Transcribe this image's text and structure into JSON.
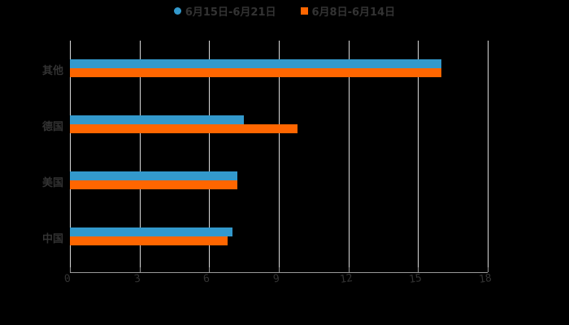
{
  "chart_data": {
    "type": "bar",
    "orientation": "horizontal",
    "title": "",
    "xlabel": "",
    "ylabel": "",
    "categories": [
      "其他",
      "德国",
      "美国",
      "中国"
    ],
    "series": [
      {
        "name": "6月15日-6月21日",
        "color": "#3399cc",
        "marker": "circle",
        "values": [
          16,
          7.5,
          7.2,
          7.0
        ]
      },
      {
        "name": "6月8日-6月14日",
        "color": "#ff6600",
        "marker": "square",
        "values": [
          16,
          9.8,
          7.2,
          6.8
        ]
      }
    ],
    "xlim": [
      0,
      18
    ],
    "xticks": [
      "0",
      "3",
      "6",
      "9",
      "12",
      "15",
      "18"
    ],
    "grid": true,
    "legend_position": "top"
  },
  "legend": {
    "items": [
      {
        "label": "6月15日-6月21日",
        "color": "#3399cc"
      },
      {
        "label": "6月8日-6月14日",
        "color": "#ff6600"
      }
    ]
  }
}
